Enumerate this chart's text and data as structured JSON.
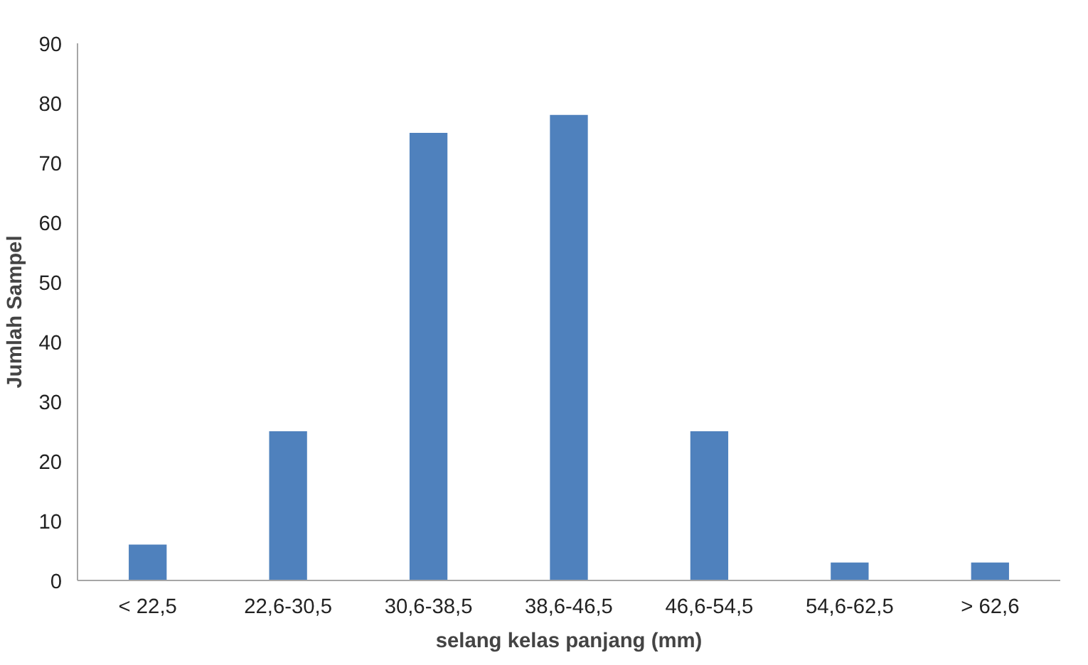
{
  "chart_data": {
    "type": "bar",
    "xlabel": "selang kelas panjang (mm)",
    "ylabel": "Jumlah Sampel",
    "categories": [
      "< 22,5",
      "22,6-30,5",
      "30,6-38,5",
      "38,6-46,5",
      "46,6-54,5",
      "54,6-62,5",
      "> 62,6"
    ],
    "values": [
      6,
      25,
      75,
      78,
      25,
      3,
      3
    ],
    "color": "#4f81bd",
    "ylim": [
      0,
      90
    ],
    "yticks": [
      0,
      10,
      20,
      30,
      40,
      50,
      60,
      70,
      80,
      90
    ],
    "grid": false
  }
}
